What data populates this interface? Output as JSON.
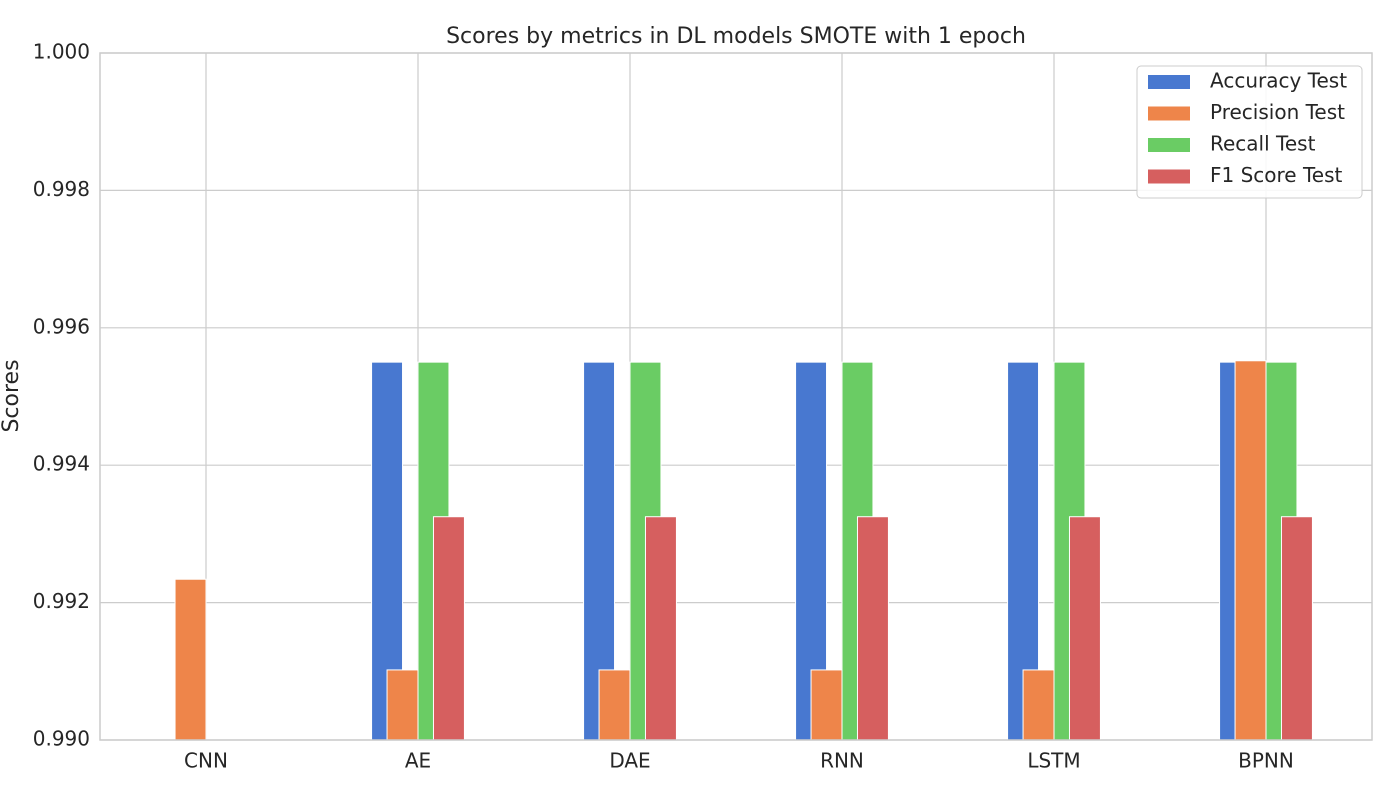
{
  "chart_data": {
    "type": "bar",
    "title": "Scores by metrics in DL models SMOTE with 1 epoch",
    "y_label": "Scores",
    "categories": [
      "CNN",
      "AE",
      "DAE",
      "RNN",
      "LSTM",
      "BPNN"
    ],
    "series": [
      {
        "name": "Accuracy Test",
        "color": "#4878d0",
        "values": [
          null,
          0.9955,
          0.9955,
          0.9955,
          0.9955,
          0.9955
        ]
      },
      {
        "name": "Precision Test",
        "color": "#ee854a",
        "values": [
          0.99234,
          0.99102,
          0.99102,
          0.99102,
          0.99102,
          0.99552
        ]
      },
      {
        "name": "Recall Test",
        "color": "#6acc64",
        "values": [
          null,
          0.9955,
          0.9955,
          0.9955,
          0.9955,
          0.9955
        ]
      },
      {
        "name": "F1 Score Test",
        "color": "#d65f5f",
        "values": [
          null,
          0.99325,
          0.99325,
          0.99325,
          0.99325,
          0.99325
        ]
      }
    ],
    "ylim": [
      0.99,
      1.0
    ],
    "yticks": [
      {
        "value": 0.99,
        "label": "0.990"
      },
      0.992,
      0.994,
      0.996,
      0.998,
      {
        "value": 1.0,
        "label": "1.000"
      }
    ],
    "grid": true,
    "legend": "upper right"
  }
}
